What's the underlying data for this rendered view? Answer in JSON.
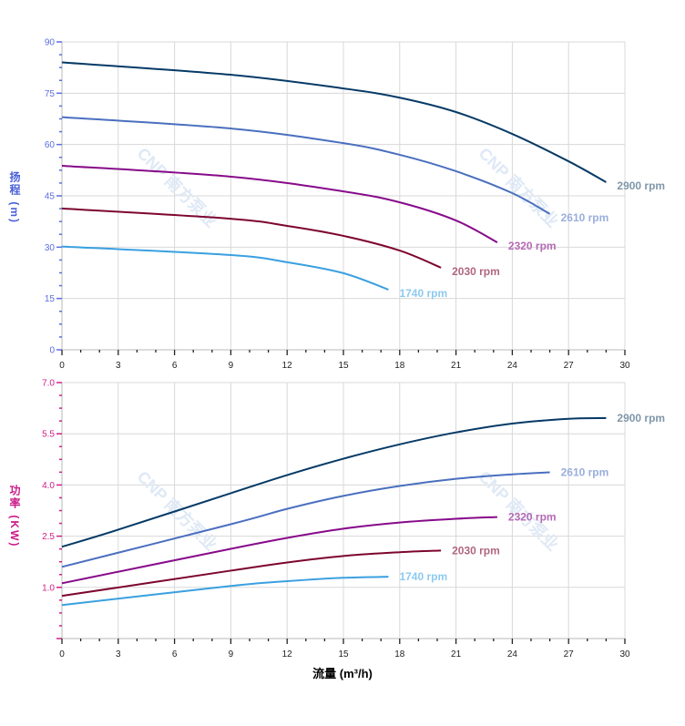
{
  "chart_data": [
    {
      "type": "line",
      "ylabel": "扬程 (m)",
      "xlim": [
        0,
        30
      ],
      "ylim": [
        0,
        90
      ],
      "xticks": [
        0,
        3,
        6,
        9,
        12,
        15,
        18,
        21,
        24,
        27,
        30
      ],
      "yticks": [
        0,
        15,
        30,
        45,
        60,
        75,
        90
      ],
      "grid": true,
      "axis_color": "#5b6ee0",
      "series": [
        {
          "name": "2900 rpm",
          "color": "#053a66",
          "label_color": "#7f97aa",
          "x": [
            0,
            9,
            15,
            18,
            21,
            24,
            27,
            29
          ],
          "y": [
            84,
            80.4,
            76.4,
            73.7,
            69.5,
            63.1,
            55.1,
            49
          ]
        },
        {
          "name": "2610 rpm",
          "color": "#4a6fbf",
          "label_color": "#9aaedb",
          "x": [
            0,
            9,
            15,
            18,
            21,
            24,
            26
          ],
          "y": [
            68,
            64.7,
            60.4,
            57,
            52.2,
            45.8,
            39.7
          ]
        },
        {
          "name": "2320 rpm",
          "color": "#870a8a",
          "label_color": "#b46ab4",
          "x": [
            0,
            9,
            15,
            18,
            21,
            23.2
          ],
          "y": [
            53.8,
            50.6,
            46.3,
            43.1,
            37.8,
            31.4
          ]
        },
        {
          "name": "2030 rpm",
          "color": "#7d0530",
          "label_color": "#b06680",
          "x": [
            0,
            9,
            12,
            15,
            18,
            20.2
          ],
          "y": [
            41.3,
            38.3,
            36.2,
            33.3,
            29,
            24
          ]
        },
        {
          "name": "1740 rpm",
          "color": "#3aa0e0",
          "label_color": "#8ccbf0",
          "x": [
            0,
            9,
            12,
            15,
            17.4
          ],
          "y": [
            30.2,
            27.7,
            25.6,
            22.4,
            17.6
          ]
        }
      ]
    },
    {
      "type": "line",
      "ylabel": "功率 (KW)",
      "xlabel": "流量 (m³/h)",
      "xlim": [
        0,
        30
      ],
      "ylim": [
        -0.5,
        7.0
      ],
      "xticks": [
        0,
        3,
        6,
        9,
        12,
        15,
        18,
        21,
        24,
        27,
        30
      ],
      "yticks": [
        "1.0",
        "2.5",
        "4.0",
        "5.5",
        "7.0"
      ],
      "grid": true,
      "axis_color": "#d0208a",
      "series": [
        {
          "name": "2900 rpm",
          "color": "#053a66",
          "label_color": "#7f97aa",
          "x": [
            0,
            3,
            9,
            12,
            15,
            18,
            21,
            24,
            27,
            29
          ],
          "y": [
            2.19,
            2.69,
            3.76,
            4.29,
            4.77,
            5.19,
            5.54,
            5.8,
            5.94,
            5.96
          ]
        },
        {
          "name": "2610 rpm",
          "color": "#4a6fbf",
          "label_color": "#9aaedb",
          "x": [
            0,
            9,
            12,
            15,
            18,
            21,
            24,
            26
          ],
          "y": [
            1.6,
            2.85,
            3.3,
            3.68,
            3.97,
            4.18,
            4.31,
            4.37
          ]
        },
        {
          "name": "2320 rpm",
          "color": "#870a8a",
          "label_color": "#b46ab4",
          "x": [
            0,
            9,
            12,
            15,
            18,
            21,
            23.2
          ],
          "y": [
            1.12,
            2.13,
            2.45,
            2.72,
            2.9,
            3.01,
            3.06
          ]
        },
        {
          "name": "2030 rpm",
          "color": "#7d0530",
          "label_color": "#b06680",
          "x": [
            0,
            9,
            12,
            15,
            18,
            20.2
          ],
          "y": [
            0.75,
            1.49,
            1.73,
            1.92,
            2.03,
            2.08
          ]
        },
        {
          "name": "1740 rpm",
          "color": "#3aa0e0",
          "label_color": "#8ccbf0",
          "x": [
            0,
            9,
            12,
            15,
            17.4
          ],
          "y": [
            0.48,
            1.04,
            1.18,
            1.28,
            1.31
          ]
        }
      ]
    }
  ],
  "watermark": "CNP 南方泵业"
}
